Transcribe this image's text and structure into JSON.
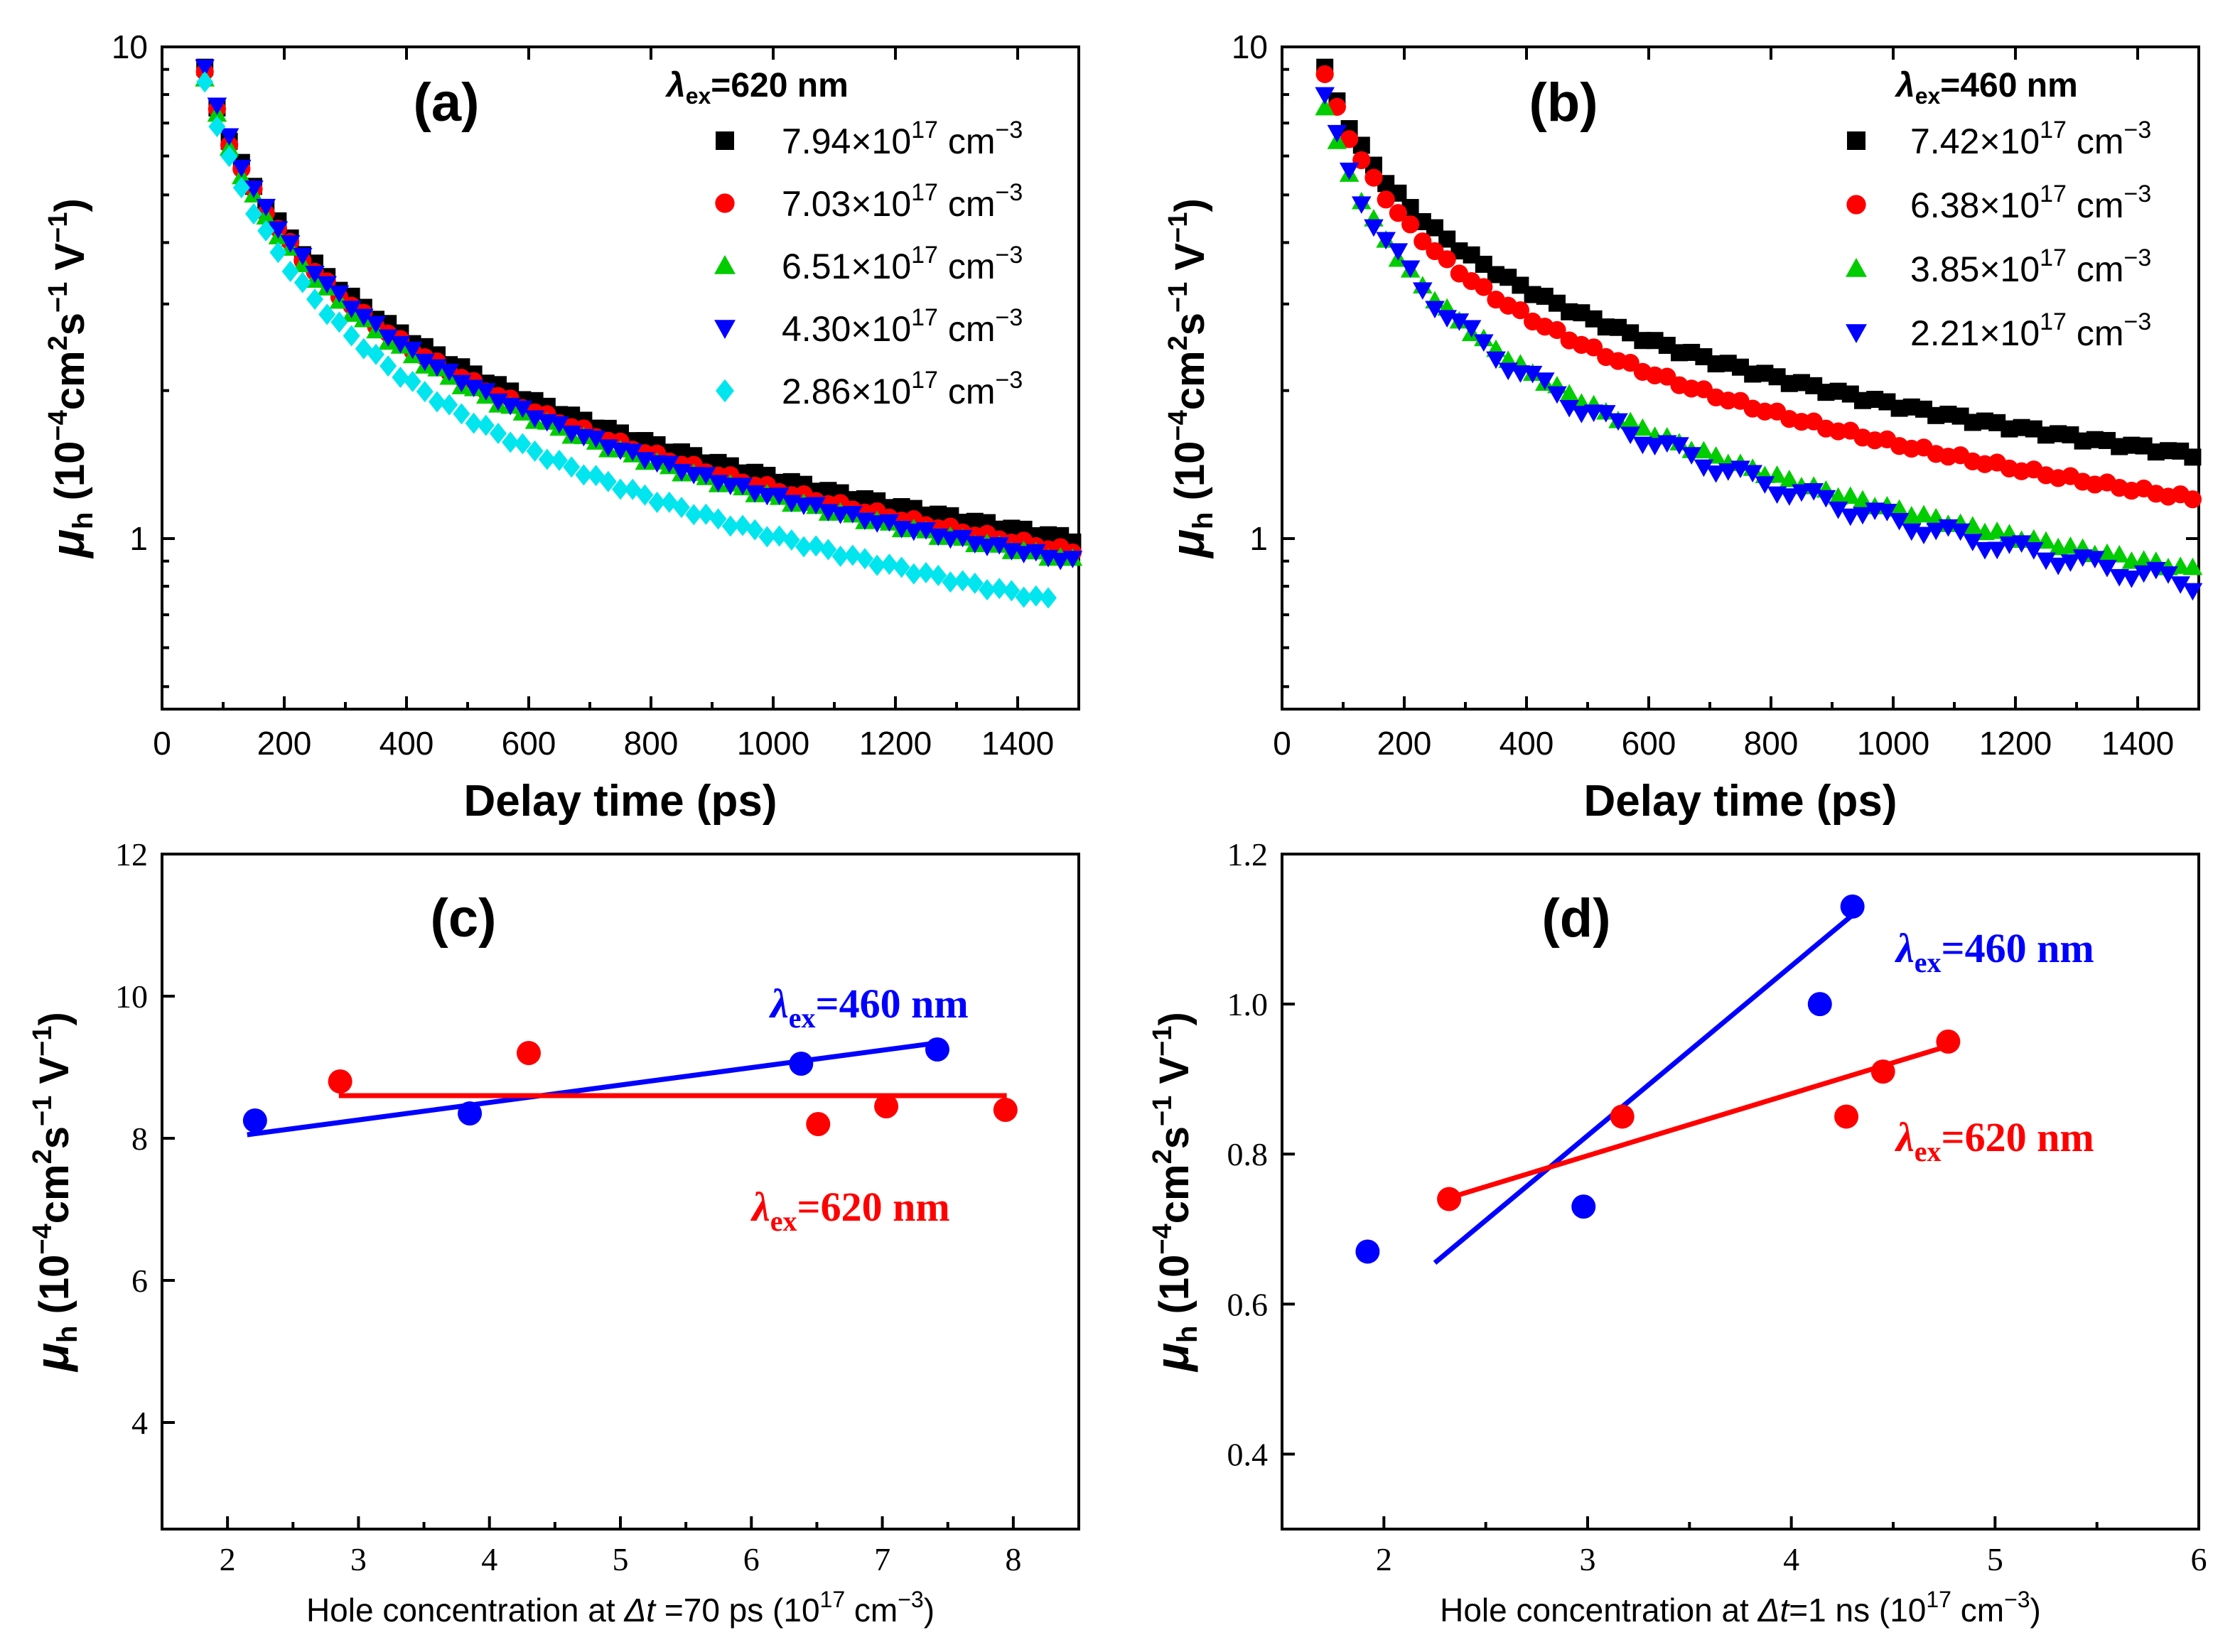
{
  "chart_data": [
    {
      "panel_label": "(a)",
      "type": "scatter",
      "xlabel": "Delay time (ps)",
      "ylabel": "μh (10−4cm2s−1 V−1)",
      "ylabel_parts": {
        "mu": "μ",
        "sub": "h",
        "unit_a": " (10",
        "exp1": "−4",
        "unit_b": "cm",
        "exp2": "2",
        "unit_c": "s",
        "exp3": "−1",
        "unit_d": " V",
        "exp4": "−1",
        "unit_e": ")"
      },
      "xlim": [
        0,
        1500
      ],
      "ylim": [
        0.45,
        10
      ],
      "yscale": "log",
      "xticks": [
        "0",
        "200",
        "400",
        "600",
        "800",
        "1000",
        "1200",
        "1400"
      ],
      "yticks": [
        "1",
        "10"
      ],
      "legend_title": {
        "lambda": "λ",
        "sub": "ex",
        "text": "=620 nm"
      },
      "series": [
        {
          "name": "7.94×1017 cm−3",
          "mantissa": "7.94×10",
          "exp": "17",
          "unit": " cm",
          "unit_exp": "−3",
          "color": "#000000",
          "marker": "square",
          "A": 9.0,
          "t0": 70,
          "alpha": 0.72
        },
        {
          "name": "7.03×1017 cm−3",
          "mantissa": "7.03×10",
          "exp": "17",
          "unit": " cm",
          "unit_exp": "−3",
          "color": "#ff0000",
          "marker": "circle",
          "A": 8.9,
          "t0": 70,
          "alpha": 0.735
        },
        {
          "name": "6.51×1017 cm−3",
          "mantissa": "6.51×10",
          "exp": "17",
          "unit": " cm",
          "unit_exp": "−3",
          "color": "#00cc00",
          "marker": "triangle-up",
          "A": 8.7,
          "t0": 70,
          "alpha": 0.74
        },
        {
          "name": "4.30×1017 cm−3",
          "mantissa": "4.30×10",
          "exp": "17",
          "unit": " cm",
          "unit_exp": "−3",
          "color": "#0000ff",
          "marker": "triangle-down",
          "A": 9.2,
          "t0": 70,
          "alpha": 0.76
        },
        {
          "name": "2.86×1017 cm−3",
          "mantissa": "2.86×10",
          "exp": "17",
          "unit": " cm",
          "unit_exp": "−3",
          "color": "#00e5ee",
          "marker": "diamond",
          "A": 8.5,
          "t0": 70,
          "alpha": 0.8,
          "tmax": 1450
        }
      ]
    },
    {
      "panel_label": "(b)",
      "type": "scatter",
      "xlabel": "Delay time (ps)",
      "ylabel": "μh (10−4cm2s−1 V−1)",
      "xlim": [
        0,
        1500
      ],
      "ylim": [
        0.45,
        10
      ],
      "yscale": "log",
      "xticks": [
        "0",
        "200",
        "400",
        "600",
        "800",
        "1000",
        "1200",
        "1400"
      ],
      "yticks": [
        "1",
        "10"
      ],
      "legend_title": {
        "lambda": "λ",
        "sub": "ex",
        "text": "=460 nm"
      },
      "series": [
        {
          "name": "7.42×1017 cm−3",
          "mantissa": "7.42×10",
          "exp": "17",
          "unit": " cm",
          "unit_exp": "−3",
          "color": "#000000",
          "marker": "square",
          "A": 9.0,
          "t0": 70,
          "alpha": 0.59
        },
        {
          "name": "6.38×1017 cm−3",
          "mantissa": "6.38×10",
          "exp": "17",
          "unit": " cm",
          "unit_exp": "−3",
          "color": "#ff0000",
          "marker": "circle",
          "A": 8.8,
          "t0": 70,
          "alpha": 0.65
        },
        {
          "name": "3.85×1017 cm−3",
          "mantissa": "3.85×10",
          "exp": "17",
          "unit": " cm",
          "unit_exp": "−3",
          "color": "#00cc00",
          "marker": "triangle-up",
          "A": 7.6,
          "t0": 70,
          "alpha": 0.71
        },
        {
          "name": "2.21×1017 cm−3",
          "mantissa": "2.21×10",
          "exp": "17",
          "unit": " cm",
          "unit_exp": "−3",
          "color": "#0000ff",
          "marker": "triangle-down",
          "A": 7.8,
          "t0": 70,
          "alpha": 0.74
        }
      ]
    },
    {
      "panel_label": "(c)",
      "type": "scatter",
      "xlabel_parts": {
        "a": "Hole concentration at ",
        "delta": "Δt",
        "b": " =70 ps (10",
        "exp": "17",
        "c": " cm",
        "exp2": "−3",
        "d": ")"
      },
      "xlim": [
        1.5,
        8.5
      ],
      "ylim": [
        2.5,
        12
      ],
      "xticks": [
        2,
        3,
        4,
        5,
        6,
        7,
        8
      ],
      "yticks": [
        4,
        6,
        8,
        10,
        12
      ],
      "series": [
        {
          "name": "λex=460 nm",
          "label_lambda": "λ",
          "label_sub": "ex",
          "label_text": "=460 nm",
          "color": "#0000ff",
          "x": [
            2.21,
            3.85,
            6.38,
            7.42
          ],
          "y": [
            8.25,
            8.35,
            9.05,
            9.25
          ],
          "fit": {
            "x": [
              2.15,
              7.45
            ],
            "y": [
              8.05,
              9.35
            ]
          }
        },
        {
          "name": "λex=620 nm",
          "label_lambda": "λ",
          "label_sub": "ex",
          "label_text": "=620 nm",
          "color": "#ff0000",
          "x": [
            2.86,
            4.3,
            6.51,
            7.03,
            7.94
          ],
          "y": [
            8.8,
            9.2,
            8.2,
            8.45,
            8.4
          ],
          "fit": {
            "x": [
              2.85,
              7.95
            ],
            "y": [
              8.6,
              8.6
            ]
          }
        }
      ]
    },
    {
      "panel_label": "(d)",
      "type": "scatter",
      "xlabel_parts": {
        "a": "Hole concentration at ",
        "delta": "Δt",
        "b": "=1 ns (10",
        "exp": "17",
        "c": " cm",
        "exp2": "−3",
        "d": ")"
      },
      "xlim": [
        1.5,
        6
      ],
      "ylim": [
        0.3,
        1.2
      ],
      "xticks": [
        2,
        3,
        4,
        5,
        6
      ],
      "yticks": [
        "0.4",
        "0.6",
        "0.8",
        "1.0",
        "1.2"
      ],
      "series": [
        {
          "name": "λex=460 nm",
          "label_lambda": "λ",
          "label_sub": "ex",
          "label_text": "=460 nm",
          "color": "#0000ff",
          "x": [
            1.92,
            2.98,
            4.14,
            4.3
          ],
          "y": [
            0.67,
            0.73,
            1.0,
            1.13
          ],
          "fit": {
            "x": [
              2.25,
              4.35
            ],
            "y": [
              0.655,
              1.13
            ]
          }
        },
        {
          "name": "λex=620 nm",
          "label_lambda": "λ",
          "label_sub": "ex",
          "label_text": "=620 nm",
          "color": "#ff0000",
          "x": [
            2.32,
            3.17,
            4.27,
            4.45,
            4.77
          ],
          "y": [
            0.74,
            0.85,
            0.85,
            0.91,
            0.95
          ],
          "fit": {
            "x": [
              2.3,
              4.78
            ],
            "y": [
              0.74,
              0.945
            ]
          }
        }
      ]
    }
  ]
}
